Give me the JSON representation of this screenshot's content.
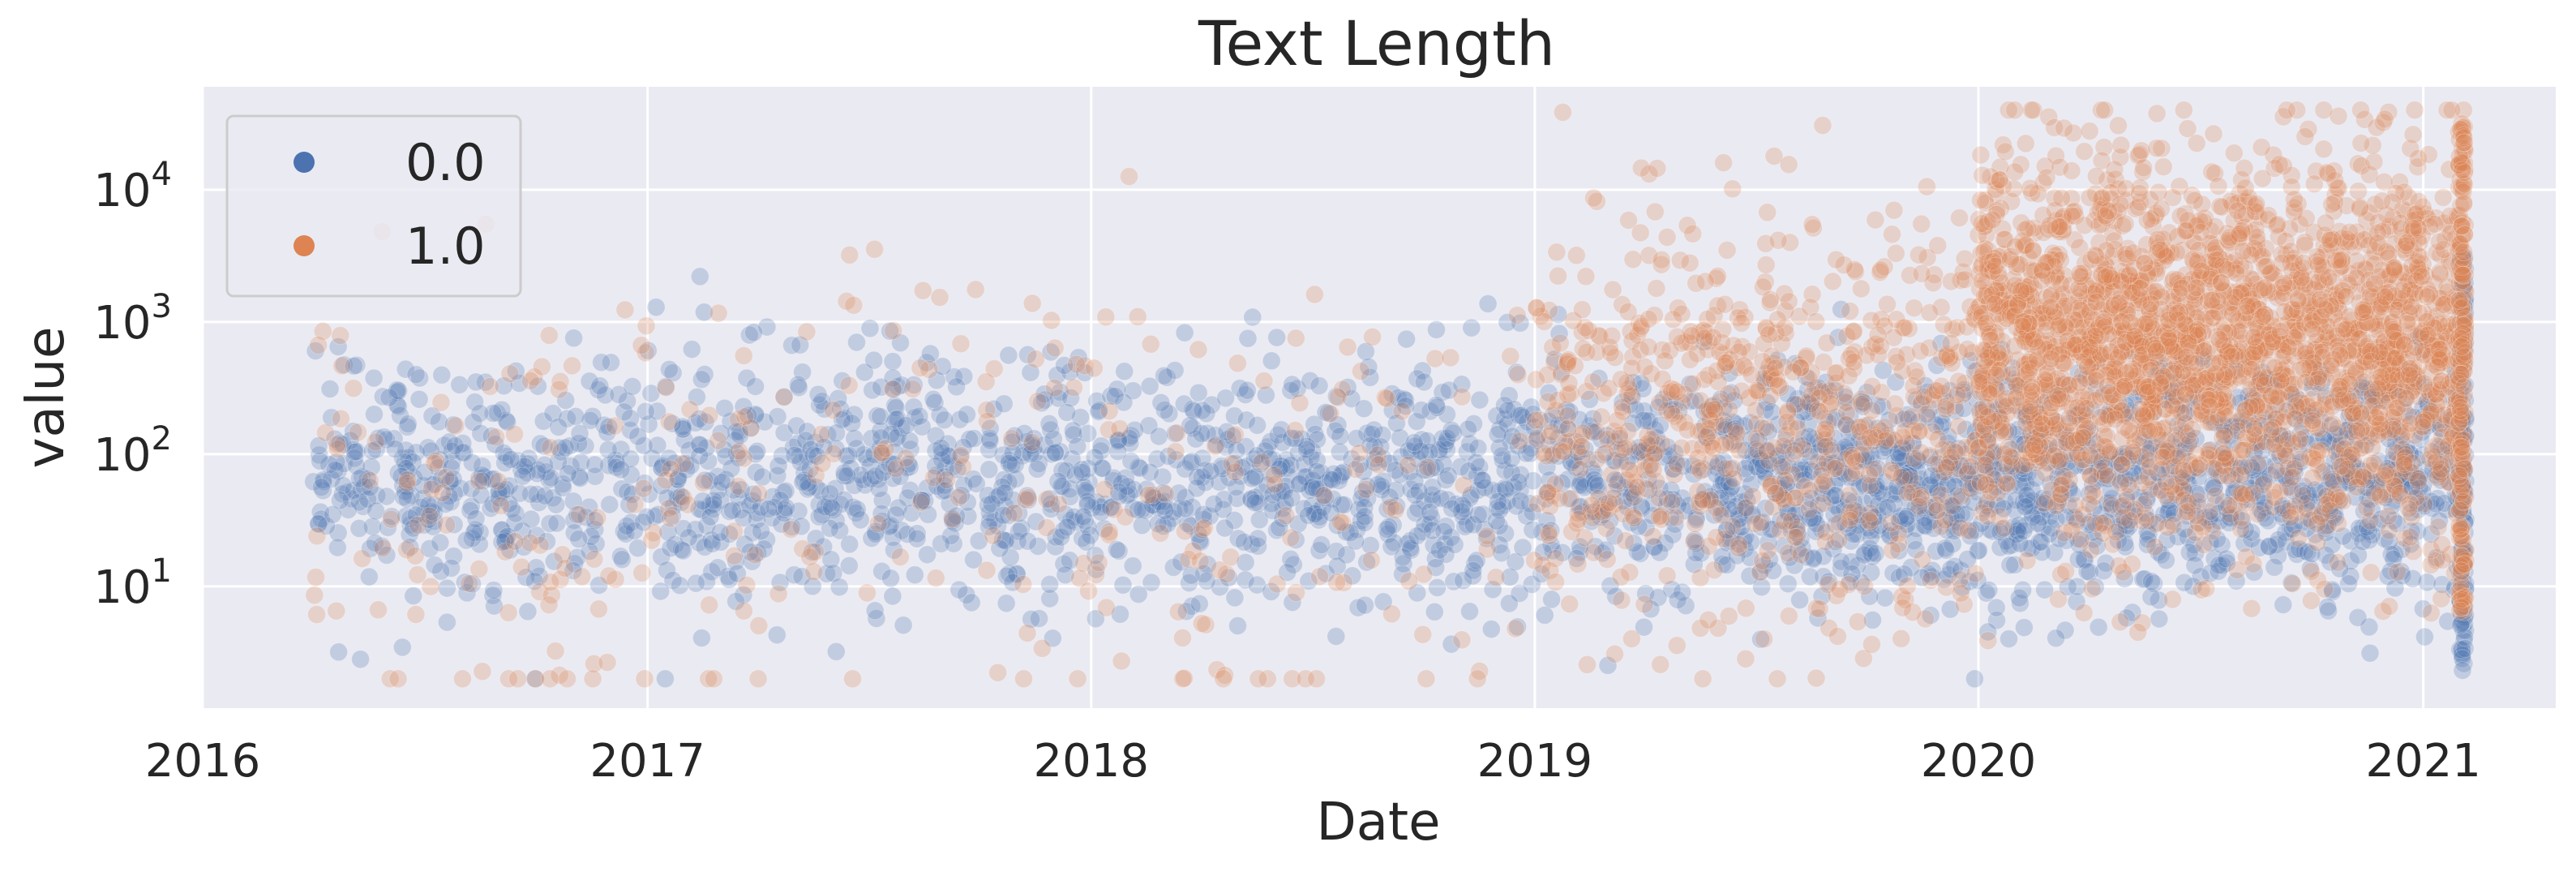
{
  "chart_data": {
    "type": "scatter",
    "title": "Text Length",
    "xlabel": "Date",
    "ylabel": "value",
    "x_scale": "time",
    "y_scale": "log",
    "xlim": [
      "2016-01-01",
      "2021-04-20"
    ],
    "ylim": [
      1.2,
      60000
    ],
    "x_ticks": [
      "2016",
      "2017",
      "2018",
      "2019",
      "2020",
      "2021"
    ],
    "y_ticks": [
      {
        "value": 10,
        "base": "10",
        "exp": "1"
      },
      {
        "value": 100,
        "base": "10",
        "exp": "2"
      },
      {
        "value": 1000,
        "base": "10",
        "exp": "3"
      },
      {
        "value": 10000,
        "base": "10",
        "exp": "4"
      }
    ],
    "grid": true,
    "legend_position": "upper-left",
    "marker_alpha": 0.25,
    "series": [
      {
        "name": "0.0",
        "color": "#4c72b0",
        "summary": {
          "x_start": "2016-04-01",
          "x_end": "2021-02-05",
          "median_value": 60,
          "typical_range": [
            12,
            800
          ]
        }
      },
      {
        "name": "1.0",
        "color": "#dd8452",
        "summary": {
          "x_start": "2016-04-01",
          "x_end": "2021-02-05",
          "median_value_2020_2021": 700,
          "typical_range": [
            5,
            35000
          ]
        }
      }
    ]
  }
}
